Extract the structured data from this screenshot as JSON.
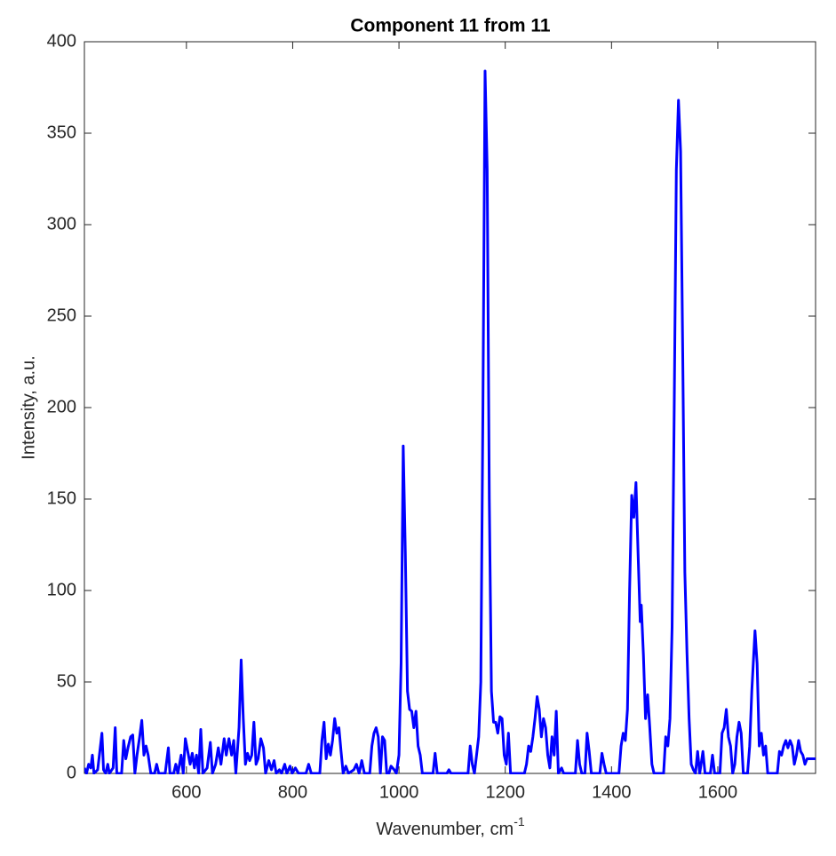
{
  "chart_data": {
    "type": "line",
    "title": "Component 11 from 11",
    "xlabel": {
      "text": "Wavenumber, cm",
      "superscript": "-1"
    },
    "ylabel": "Intensity, a.u.",
    "xlim": [
      408,
      1784
    ],
    "xticks": [
      600,
      800,
      1000,
      1200,
      1400,
      1600
    ],
    "ylim": [
      0,
      400
    ],
    "yticks": [
      0,
      50,
      100,
      150,
      200,
      250,
      300,
      350,
      400
    ],
    "grid": false,
    "series": [
      {
        "color": "#0000ff",
        "x": [
          408,
          412,
          416,
          420,
          423,
          426,
          433,
          437,
          441,
          444,
          448,
          452,
          455,
          462,
          466,
          469,
          478,
          482,
          486,
          490,
          495,
          499,
          503,
          507,
          512,
          516,
          520,
          524,
          528,
          533,
          540,
          544,
          548,
          560,
          566,
          569,
          576,
          580,
          584,
          590,
          594,
          598,
          607,
          611,
          615,
          619,
          623,
          627,
          631,
          639,
          645,
          649,
          655,
          660,
          665,
          671,
          675,
          680,
          685,
          689,
          693,
          699,
          703,
          707,
          711,
          715,
          719,
          723,
          727,
          731,
          735,
          740,
          745,
          749,
          755,
          760,
          765,
          769,
          775,
          779,
          785,
          789,
          795,
          799,
          805,
          811,
          825,
          830,
          835,
          851,
          855,
          859,
          863,
          867,
          871,
          875,
          879,
          883,
          887,
          891,
          895,
          900,
          905,
          915,
          920,
          925,
          930,
          935,
          945,
          949,
          953,
          957,
          961,
          965,
          969,
          973,
          977,
          981,
          985,
          991,
          995,
          1000,
          1004,
          1008,
          1012,
          1016,
          1020,
          1024,
          1028,
          1032,
          1036,
          1040,
          1044,
          1064,
          1068,
          1072,
          1090,
          1094,
          1098,
          1130,
          1134,
          1138,
          1142,
          1150,
          1154,
          1158,
          1162,
          1166,
          1170,
          1174,
          1178,
          1182,
          1186,
          1190,
          1194,
          1198,
          1202,
          1206,
          1210,
          1236,
          1240,
          1244,
          1248,
          1252,
          1256,
          1260,
          1264,
          1268,
          1272,
          1276,
          1280,
          1284,
          1288,
          1292,
          1296,
          1300,
          1306,
          1310,
          1332,
          1336,
          1340,
          1344,
          1350,
          1354,
          1358,
          1362,
          1378,
          1382,
          1386,
          1390,
          1414,
          1418,
          1422,
          1426,
          1430,
          1434,
          1438,
          1442,
          1446,
          1450,
          1454,
          1456,
          1460,
          1464,
          1468,
          1472,
          1476,
          1480,
          1498,
          1502,
          1506,
          1510,
          1514,
          1518,
          1522,
          1526,
          1530,
          1534,
          1538,
          1542,
          1546,
          1550,
          1554,
          1558,
          1562,
          1566,
          1572,
          1576,
          1586,
          1590,
          1594,
          1604,
          1608,
          1612,
          1616,
          1620,
          1624,
          1628,
          1632,
          1636,
          1640,
          1644,
          1648,
          1656,
          1660,
          1664,
          1670,
          1674,
          1678,
          1682,
          1686,
          1690,
          1694,
          1712,
          1716,
          1720,
          1724,
          1728,
          1732,
          1736,
          1740,
          1744,
          1748,
          1752,
          1756,
          1760,
          1764,
          1768,
          1776,
          1784
        ],
        "values": [
          3,
          0,
          5,
          3,
          10,
          0,
          2,
          12,
          22,
          2,
          0,
          5,
          0,
          3,
          25,
          0,
          0,
          18,
          8,
          14,
          20,
          21,
          0,
          10,
          20,
          29,
          10,
          15,
          10,
          0,
          0,
          5,
          0,
          0,
          14,
          0,
          0,
          5,
          0,
          10,
          0,
          19,
          5,
          11,
          3,
          10,
          0,
          24,
          0,
          3,
          17,
          0,
          5,
          14,
          5,
          19,
          10,
          19,
          10,
          18,
          0,
          25,
          62,
          30,
          5,
          11,
          7,
          10,
          28,
          5,
          8,
          19,
          14,
          0,
          7,
          2,
          7,
          0,
          2,
          0,
          5,
          0,
          4,
          0,
          3,
          0,
          0,
          5,
          0,
          0,
          18,
          28,
          8,
          16,
          10,
          18,
          30,
          22,
          25,
          12,
          0,
          4,
          0,
          2,
          5,
          0,
          7,
          0,
          0,
          15,
          22,
          25,
          20,
          0,
          20,
          18,
          0,
          0,
          4,
          2,
          0,
          10,
          60,
          179,
          120,
          45,
          35,
          34,
          25,
          34,
          15,
          10,
          0,
          0,
          11,
          0,
          0,
          2,
          0,
          0,
          15,
          5,
          0,
          20,
          50,
          200,
          384,
          330,
          150,
          45,
          28,
          28,
          22,
          31,
          30,
          10,
          5,
          22,
          0,
          0,
          5,
          15,
          12,
          20,
          30,
          42,
          35,
          20,
          30,
          25,
          10,
          3,
          20,
          10,
          34,
          0,
          3,
          0,
          0,
          18,
          5,
          0,
          0,
          22,
          12,
          0,
          0,
          11,
          5,
          0,
          0,
          15,
          22,
          18,
          35,
          100,
          152,
          140,
          159,
          120,
          83,
          92,
          65,
          30,
          43,
          25,
          5,
          0,
          0,
          20,
          15,
          30,
          80,
          200,
          330,
          368,
          340,
          230,
          110,
          66,
          30,
          5,
          2,
          0,
          12,
          0,
          12,
          0,
          0,
          10,
          0,
          0,
          22,
          25,
          35,
          20,
          15,
          0,
          5,
          20,
          28,
          22,
          0,
          0,
          15,
          45,
          78,
          60,
          15,
          22,
          10,
          15,
          0,
          0,
          12,
          10,
          15,
          18,
          14,
          18,
          15,
          5,
          10,
          18,
          12,
          10,
          5,
          8,
          8,
          8
        ]
      }
    ]
  }
}
